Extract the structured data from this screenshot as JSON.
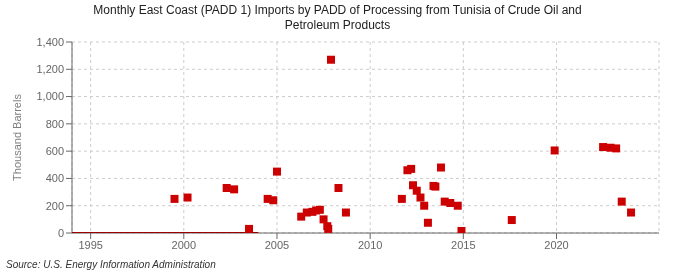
{
  "chart_data": {
    "type": "scatter",
    "title": "Monthly East Coast (PADD 1) Imports by PADD of Processing from Tunisia of Crude Oil and\nPetroleum Products",
    "ylabel": "Thousand Barrels",
    "source": "Source: U.S. Energy Information Administration",
    "xlim": [
      1994.0,
      2025.5
    ],
    "xticks": [
      1995,
      2000,
      2005,
      2010,
      2015,
      2020
    ],
    "ylim": [
      0,
      1400
    ],
    "yticks": [
      0,
      200,
      400,
      600,
      800,
      {
        "value": 1000,
        "label": "1,000"
      },
      {
        "value": 1200,
        "label": "1,200"
      },
      {
        "value": 1400,
        "label": "1,400"
      }
    ],
    "grid": true,
    "series": [
      {
        "type": "line",
        "color": "#990000",
        "x": [
          1994.0,
          2004.0
        ],
        "values": [
          0,
          0
        ]
      },
      {
        "type": "scatter",
        "color": "#cc0000",
        "marker": "square",
        "x": [
          1999.5,
          2000.2,
          2002.3,
          2002.7,
          2003.5,
          2004.5,
          2004.8,
          2005.0,
          2006.3,
          2006.6,
          2006.9,
          2007.1,
          2007.3,
          2007.5,
          2007.7,
          2007.75,
          2007.9,
          2008.3,
          2008.7,
          2011.7,
          2012.0,
          2012.2,
          2012.3,
          2012.5,
          2012.7,
          2012.9,
          2013.1,
          2013.4,
          2013.5,
          2013.8,
          2014.0,
          2014.3,
          2014.7,
          2014.9,
          2017.6,
          2019.9,
          2022.5,
          2022.9,
          2023.2,
          2023.5,
          2024.0
        ],
        "values": [
          250,
          260,
          330,
          320,
          30,
          250,
          240,
          450,
          120,
          150,
          155,
          165,
          170,
          100,
          50,
          30,
          1270,
          330,
          150,
          250,
          460,
          470,
          350,
          310,
          260,
          200,
          75,
          345,
          340,
          480,
          230,
          220,
          200,
          15,
          95,
          605,
          630,
          625,
          620,
          230,
          150
        ]
      }
    ]
  }
}
